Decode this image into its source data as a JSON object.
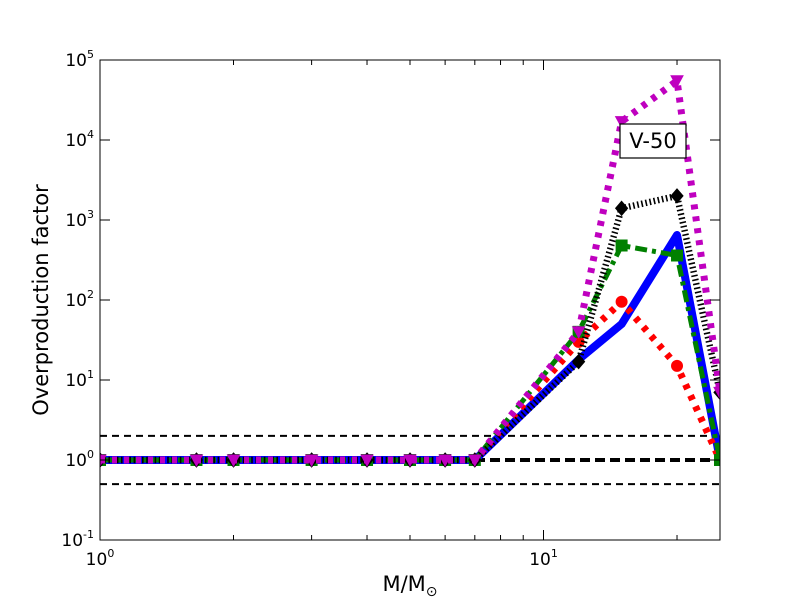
{
  "chart_data": {
    "type": "line",
    "xscale": "log",
    "yscale": "log",
    "xlim": [
      1,
      25
    ],
    "ylim": [
      0.1,
      100000
    ],
    "xlabel": "M/M⊙",
    "xlabel_base": "M/M",
    "xlabel_sub": "⊙",
    "ylabel": "Overproduction factor",
    "x_ticks": [
      {
        "value": 1,
        "base": "10",
        "exp": "0"
      },
      {
        "value": 10,
        "base": "10",
        "exp": "1"
      }
    ],
    "y_ticks": [
      {
        "value": 0.1,
        "base": "10",
        "exp": "-1"
      },
      {
        "value": 1,
        "base": "10",
        "exp": "0"
      },
      {
        "value": 10,
        "base": "10",
        "exp": "1"
      },
      {
        "value": 100,
        "base": "10",
        "exp": "2"
      },
      {
        "value": 1000,
        "base": "10",
        "exp": "3"
      },
      {
        "value": 10000,
        "base": "10",
        "exp": "4"
      },
      {
        "value": 100000,
        "base": "10",
        "exp": "5"
      }
    ],
    "annotation": "V-50",
    "reference_lines": [
      {
        "y": 2,
        "color": "#000000",
        "style": "dashed",
        "weight": "thin"
      },
      {
        "y": 1,
        "color": "#000000",
        "style": "dashed",
        "weight": "thick"
      },
      {
        "y": 0.5,
        "color": "#000000",
        "style": "dashed",
        "weight": "thin"
      }
    ],
    "series": [
      {
        "color": "#0000ff",
        "style": "solid",
        "marker": "none",
        "x": [
          1,
          1.65,
          2,
          3,
          4,
          5,
          6,
          7,
          12,
          15,
          20,
          25
        ],
        "y": [
          1,
          1,
          1,
          1,
          1,
          1,
          1,
          1,
          18,
          50,
          650,
          1
        ]
      },
      {
        "color": "#ff0000",
        "style": "dotted",
        "marker": "circle",
        "x": [
          1,
          1.65,
          2,
          3,
          4,
          5,
          6,
          7,
          12,
          15,
          20,
          25
        ],
        "y": [
          1,
          1,
          1,
          1,
          1,
          1,
          1,
          1,
          30,
          95,
          15,
          1
        ]
      },
      {
        "color": "#008000",
        "style": "dashdot",
        "marker": "square",
        "x": [
          1,
          1.65,
          2,
          3,
          4,
          5,
          6,
          7,
          12,
          15,
          20,
          25
        ],
        "y": [
          1,
          1,
          1,
          1,
          1,
          1,
          1,
          1,
          40,
          480,
          360,
          1
        ]
      },
      {
        "color": "#000000",
        "style": "hatched",
        "marker": "diamond",
        "x": [
          1,
          1.65,
          2,
          3,
          4,
          5,
          6,
          7,
          12,
          15,
          20,
          25
        ],
        "y": [
          1,
          1,
          1,
          1,
          1,
          1,
          1,
          1,
          17,
          1400,
          2000,
          7
        ]
      },
      {
        "color": "#bf00bf",
        "style": "dotted",
        "marker": "triangle-down",
        "x": [
          1,
          1.65,
          2,
          3,
          4,
          5,
          6,
          7,
          12,
          15,
          20,
          25
        ],
        "y": [
          1,
          1,
          1,
          1,
          1,
          1,
          1,
          1,
          40,
          17000,
          55000,
          7
        ]
      }
    ]
  }
}
